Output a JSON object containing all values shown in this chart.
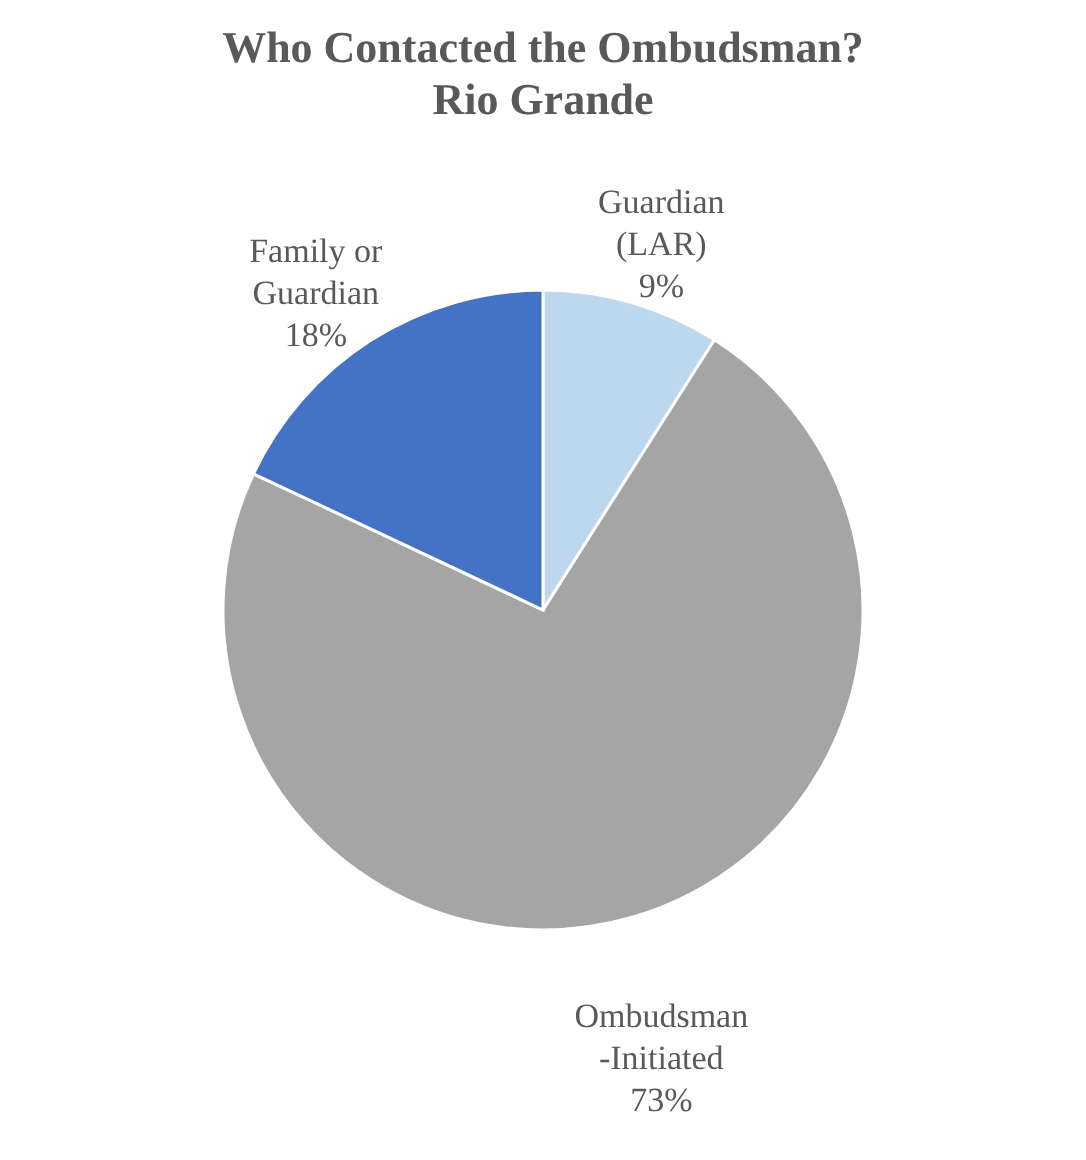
{
  "chart_data": {
    "type": "pie",
    "title": "Who Contacted the Ombudsman?\nRio Grande",
    "categories": [
      "Guardian\n(LAR)",
      "Ombudsman\n-Initiated",
      "Family or\nGuardian"
    ],
    "values": [
      9,
      73,
      18
    ],
    "value_labels": [
      "9%",
      "73%",
      "18%"
    ],
    "colors": [
      "#bdd7ee",
      "#a5a5a5",
      "#4472c4"
    ],
    "legend": false
  }
}
